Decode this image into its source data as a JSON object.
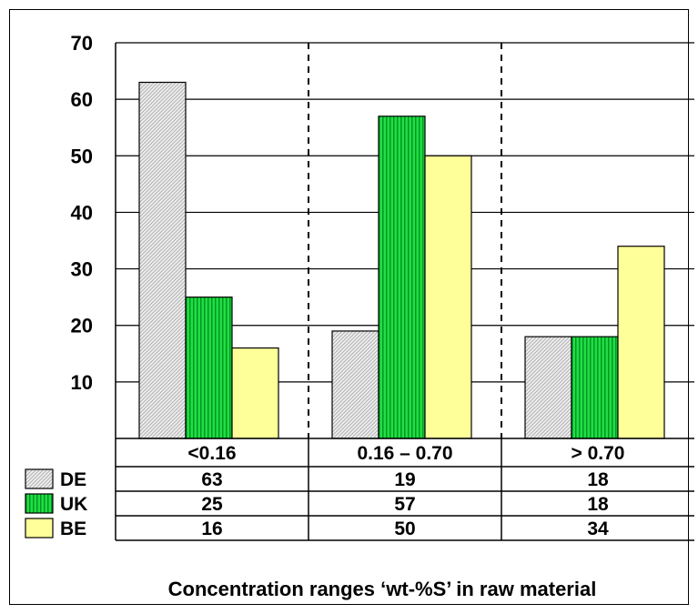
{
  "chart_data": {
    "type": "bar",
    "categories": [
      "<0.16",
      "0.16 – 0.70",
      "> 0.70"
    ],
    "series": [
      {
        "name": "DE",
        "values": [
          63,
          19,
          18
        ],
        "color": "#e6e6e6",
        "pattern": "diagonal-hatch"
      },
      {
        "name": "UK",
        "values": [
          25,
          57,
          18
        ],
        "color": "#00cc33",
        "pattern": "vertical-stripes"
      },
      {
        "name": "BE",
        "values": [
          16,
          50,
          34
        ],
        "color": "#ffff99",
        "pattern": "solid"
      }
    ],
    "table": {
      "rows": [
        {
          "label": "DE",
          "cells": [
            "63",
            "19",
            "18"
          ]
        },
        {
          "label": "UK",
          "cells": [
            "25",
            "57",
            "18"
          ]
        },
        {
          "label": "BE",
          "cells": [
            "16",
            "50",
            "34"
          ]
        }
      ]
    },
    "yticks": [
      "10",
      "20",
      "30",
      "40",
      "50",
      "60",
      "70"
    ],
    "ylim": [
      0,
      70
    ],
    "caption": "Concentration ranges ‘wt-%S’ in raw material",
    "grid": true,
    "legend": "left-of-table"
  }
}
